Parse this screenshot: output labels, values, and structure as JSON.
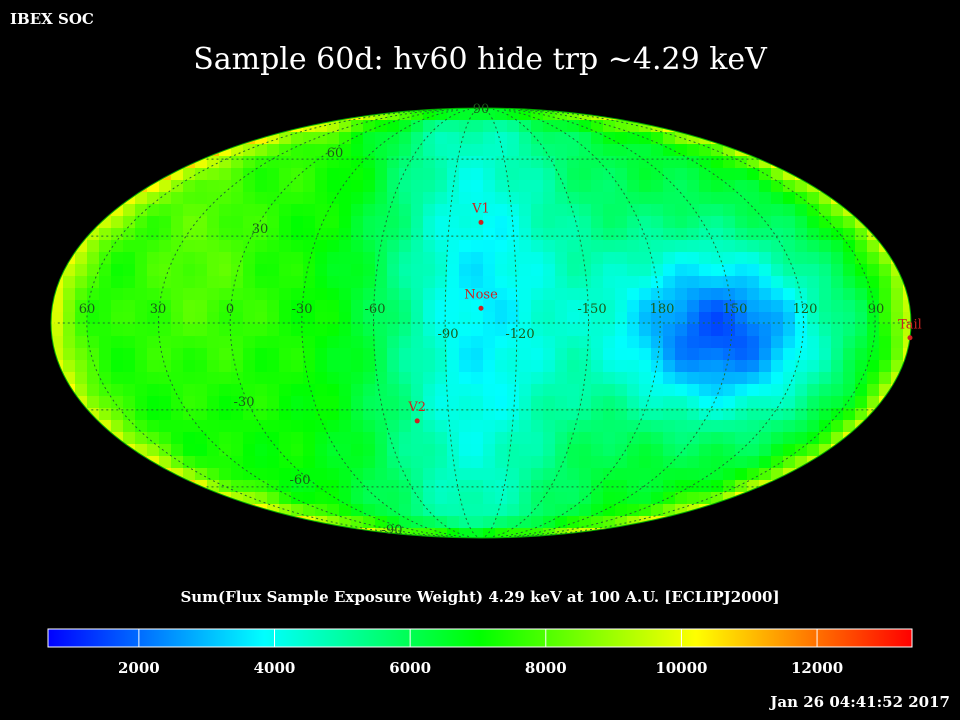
{
  "header": {
    "organization": "IBEX SOC",
    "title": "Sample 60d: hv60 hide trp ~4.29 keV"
  },
  "map": {
    "projection": "mollweide",
    "latitude_labels": [
      "90",
      "60",
      "30",
      "-30",
      "-60",
      "-90"
    ],
    "latitude_values": [
      90,
      60,
      30,
      -30,
      -60,
      -90
    ],
    "longitude_labels": [
      "60",
      "30",
      "0",
      "-30",
      "-60",
      "-90",
      "-120",
      "-150",
      "180",
      "150",
      "120",
      "90"
    ],
    "longitude_values": [
      60,
      30,
      0,
      -30,
      -60,
      -90,
      -120,
      -150,
      180,
      150,
      120,
      90
    ],
    "markers": [
      {
        "label": "V1",
        "lon": -105,
        "lat": 35
      },
      {
        "label": "Nose",
        "lon": -105,
        "lat": 5
      },
      {
        "label": "V2",
        "lon": -75,
        "lat": -34
      },
      {
        "label": "Tail",
        "lon": 75,
        "lat": -5
      }
    ]
  },
  "colorbar": {
    "title": "Sum(Flux Sample Exposure Weight)  4.29 keV at 100 A.U. [ECLIPJ2000]",
    "min": 660,
    "max": 13400,
    "tick_labels": [
      "2000",
      "4000",
      "6000",
      "8000",
      "10000",
      "12000"
    ],
    "tick_values": [
      2000,
      4000,
      6000,
      8000,
      10000,
      12000
    ],
    "colors": [
      "#0000ff",
      "#00ffff",
      "#00ff00",
      "#ffff00",
      "#ff0000"
    ]
  },
  "footer": {
    "timestamp": "Jan 26 04:41:52 2017"
  }
}
